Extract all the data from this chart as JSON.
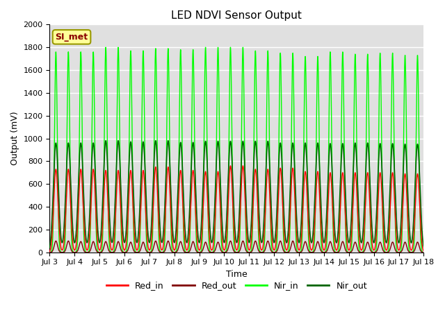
{
  "title": "LED NDVI Sensor Output",
  "xlabel": "Time",
  "ylabel": "Output (mV)",
  "ylim": [
    0,
    2000
  ],
  "xlim_days": [
    3,
    18
  ],
  "x_tick_days": [
    3,
    4,
    5,
    6,
    7,
    8,
    9,
    10,
    11,
    12,
    13,
    14,
    15,
    16,
    17,
    18
  ],
  "x_tick_labels": [
    "Jul 3",
    "Jul 4",
    "Jul 5",
    "Jul 6",
    "Jul 7",
    "Jul 8",
    "Jul 9",
    "Jul 10",
    "Jul 11",
    "Jul 12",
    "Jul 13",
    "Jul 14",
    "Jul 15",
    "Jul 16",
    "Jul 17",
    "Jul 18"
  ],
  "plot_bg_color": "#e0e0e0",
  "fig_bg_color": "#ffffff",
  "grid_color": "#ffffff",
  "annotation_text": "SI_met",
  "annotation_bg": "#ffff99",
  "annotation_border": "#999900",
  "annotation_text_color": "#8B0000",
  "colors": {
    "Red_in": "#ff0000",
    "Red_out": "#800000",
    "Nir_in": "#00ff00",
    "Nir_out": "#006400"
  },
  "legend_labels": [
    "Red_in",
    "Red_out",
    "Nir_in",
    "Nir_out"
  ],
  "red_in_peaks": [
    730,
    730,
    720,
    720,
    750,
    720,
    710,
    760,
    730,
    740,
    710,
    700,
    700,
    700,
    690,
    680
  ],
  "red_out_peaks": [
    100,
    95,
    95,
    90,
    100,
    95,
    90,
    100,
    100,
    100,
    95,
    95,
    90,
    90,
    90,
    85
  ],
  "nir_in_peaks": [
    1760,
    1760,
    1800,
    1770,
    1790,
    1780,
    1800,
    1800,
    1770,
    1750,
    1720,
    1760,
    1740,
    1750,
    1730,
    1710
  ],
  "nir_out_peaks": [
    960,
    960,
    980,
    970,
    980,
    965,
    975,
    975,
    975,
    960,
    960,
    955,
    960,
    955,
    950,
    930
  ],
  "ndays": 15,
  "start_day": 3,
  "pulses_per_day": 2,
  "nir_in_sigma": 0.055,
  "nir_out_sigma": 0.1,
  "red_in_sigma": 0.085,
  "red_out_sigma": 0.065
}
